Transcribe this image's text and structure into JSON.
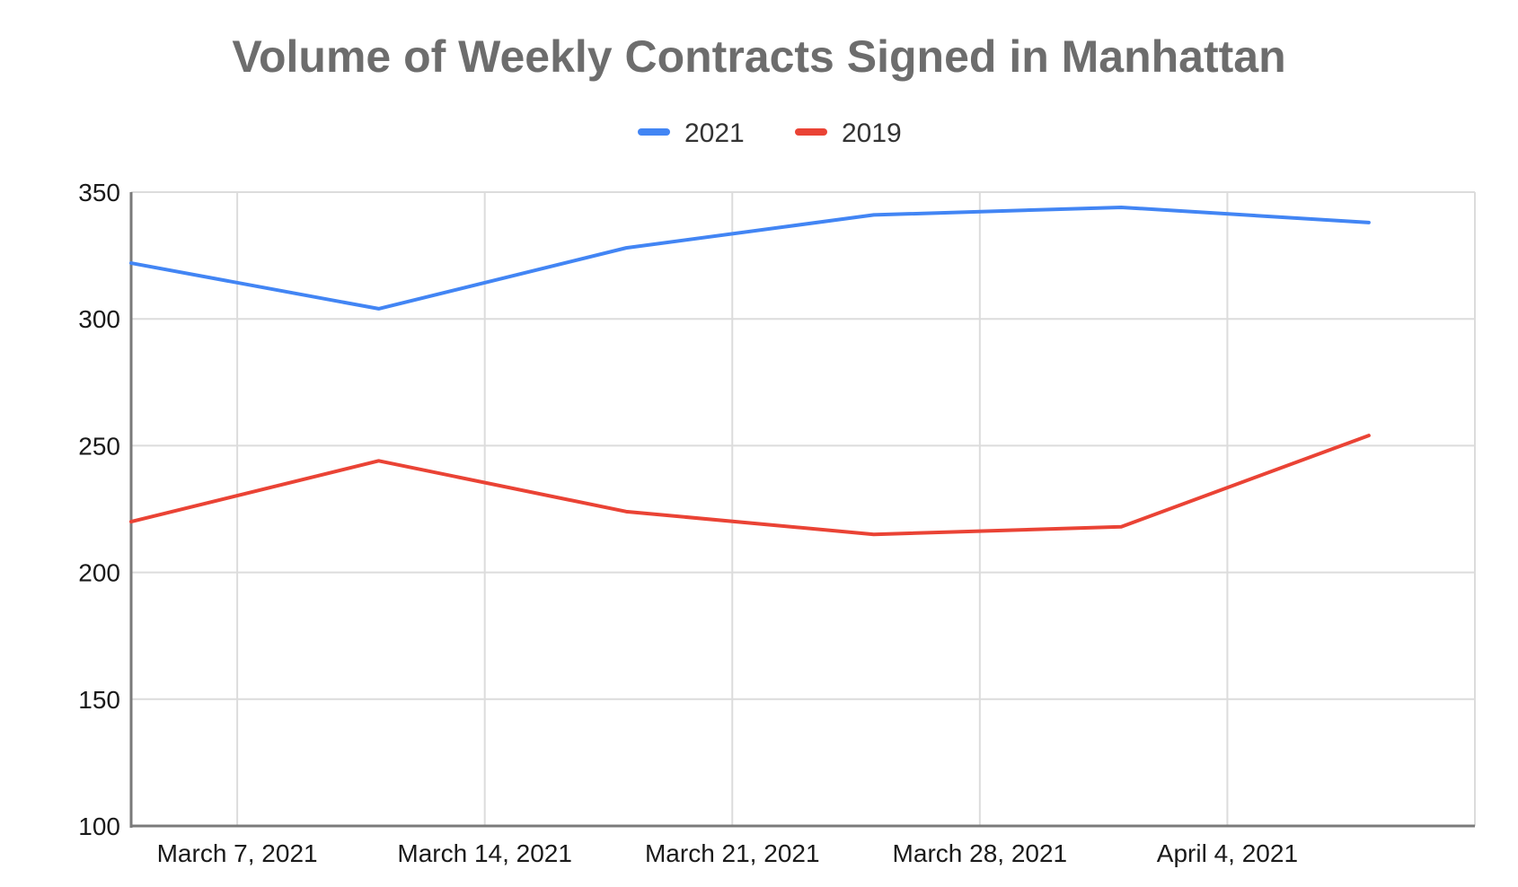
{
  "chart_data": {
    "type": "line",
    "title": "Volume of Weekly Contracts Signed in Manhattan",
    "xlabel": "",
    "ylabel": "",
    "x": [
      "2021-03-07",
      "2021-03-14",
      "2021-03-21",
      "2021-03-28",
      "2021-04-04",
      "2021-04-11"
    ],
    "x_points": [
      "2021-03-04",
      "2021-03-11",
      "2021-03-18",
      "2021-03-25",
      "2021-04-01",
      "2021-04-08"
    ],
    "x_tick_labels": [
      "March 7, 2021",
      "March 14, 2021",
      "March 21, 2021",
      "March 28, 2021",
      "April 4, 2021"
    ],
    "x_range": [
      "2021-03-04",
      "2021-04-11"
    ],
    "ylim": [
      100,
      350
    ],
    "y_ticks": [
      100,
      150,
      200,
      250,
      300,
      350
    ],
    "grid": true,
    "legend_position": "top",
    "series": [
      {
        "name": "2021",
        "color": "#4285f4",
        "values": [
          322,
          304,
          328,
          341,
          344,
          338
        ]
      },
      {
        "name": "2019",
        "color": "#ea4335",
        "values": [
          220,
          244,
          224,
          215,
          218,
          254
        ]
      }
    ]
  }
}
